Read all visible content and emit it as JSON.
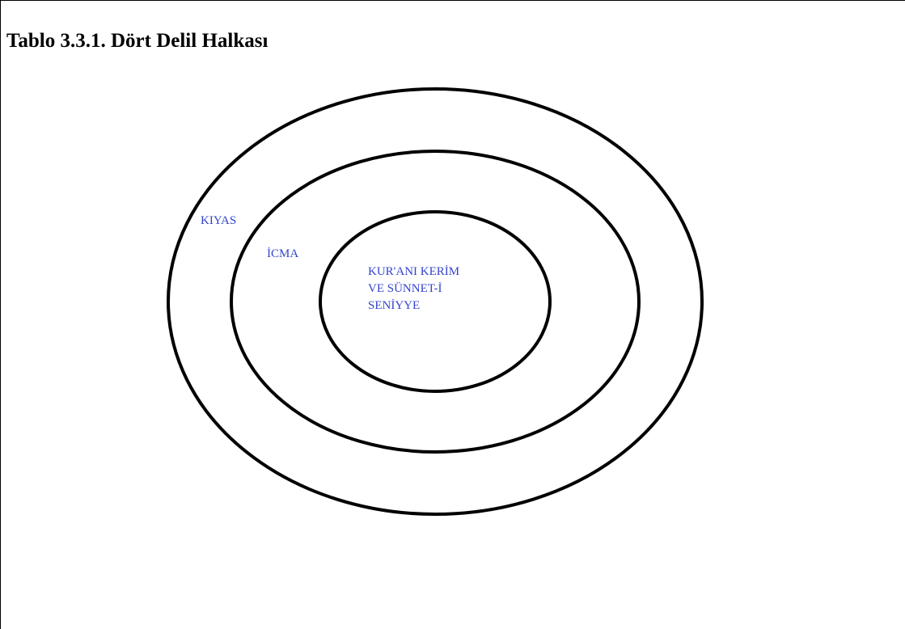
{
  "title": "Tablo 3.3.1. Dört Delil Halkası",
  "rings": [
    {
      "label": [
        "KIYAS"
      ]
    },
    {
      "label": [
        "İCMA"
      ]
    },
    {
      "label": [
        "KUR'ANI KERİM",
        "VE SÜNNET-İ",
        "SENİYYE"
      ]
    }
  ]
}
